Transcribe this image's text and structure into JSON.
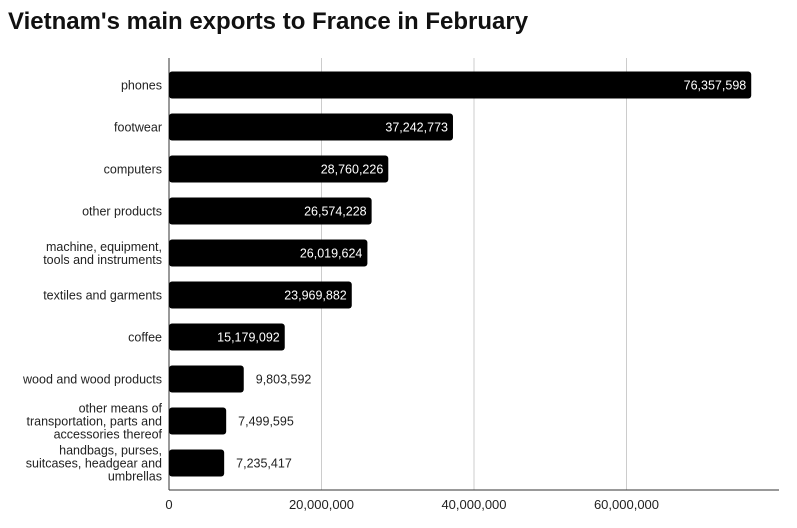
{
  "chart_data": {
    "type": "bar",
    "orientation": "horizontal",
    "title": "Vietnam's main exports to France in February",
    "categories": [
      [
        "phones"
      ],
      [
        "footwear"
      ],
      [
        "computers"
      ],
      [
        "other products"
      ],
      [
        "machine, equipment,",
        "tools and instruments"
      ],
      [
        "textiles and garments"
      ],
      [
        "coffee"
      ],
      [
        "wood and wood products"
      ],
      [
        "other means of",
        "transportation, parts and",
        "accessories thereof"
      ],
      [
        "handbags, purses,",
        "suitcases, headgear and",
        "umbrellas"
      ]
    ],
    "values": [
      76357598,
      37242773,
      28760226,
      26574228,
      26019624,
      23969882,
      15179092,
      9803592,
      7499595,
      7235417
    ],
    "data_labels": [
      "76,357,598",
      "37,242,773",
      "28,760,226",
      "26,574,228",
      "26,019,624",
      "23,969,882",
      "15,179,092",
      "9,803,592",
      "7,499,595",
      "7,235,417"
    ],
    "xticks": [
      0,
      20000000,
      40000000,
      60000000
    ],
    "xtick_labels": [
      "0",
      "20,000,000",
      "40,000,000",
      "60,000,000"
    ],
    "xlim": [
      0,
      80000000
    ],
    "grid": true,
    "bar_color": "#000000",
    "grid_color": "#cccccc"
  }
}
